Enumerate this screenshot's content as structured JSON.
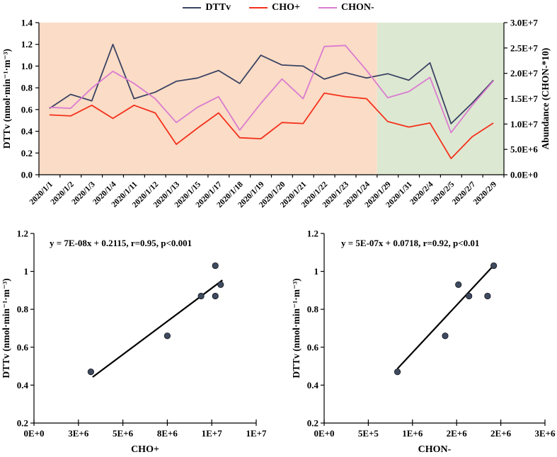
{
  "legend": {
    "items": [
      {
        "label": "DTTv",
        "color": "#3A4363"
      },
      {
        "label": "CHO+",
        "color": "#F4301B"
      },
      {
        "label": "CHON-",
        "color": "#DA7BD0"
      }
    ]
  },
  "colors": {
    "pre_period_background": "#FBDCC6",
    "post_period_background": "#DDE8D2",
    "axis": "#000000",
    "scatter_point_fill": "#3E4A5E",
    "scatter_point_stroke": "#15151F",
    "trend_line": "#000000"
  },
  "chart_data": [
    {
      "id": "timeseries",
      "type": "line",
      "legend_position": "top-center",
      "categories": [
        "2020/1/1",
        "2020/1/2",
        "2020/1/3",
        "2020/1/4",
        "2020/1/11",
        "2020/1/12",
        "2020/1/13",
        "2020/1/15",
        "2020/1/17",
        "2020/1/18",
        "2020/1/19",
        "2020/1/20",
        "2020/1/21",
        "2020/1/22",
        "2020/1/23",
        "2020/1/24",
        "2020/1/29",
        "2020/1/31",
        "2020/2/4",
        "2020/2/5",
        "2020/2/7",
        "2020/2/9"
      ],
      "series": [
        {
          "name": "DTTv",
          "axis": "left",
          "color": "#3A4363",
          "values": [
            0.61,
            0.74,
            0.68,
            1.2,
            0.7,
            0.76,
            0.86,
            0.89,
            0.96,
            0.84,
            1.1,
            1.01,
            1.0,
            0.88,
            0.94,
            0.89,
            0.93,
            0.87,
            1.03,
            0.47,
            0.66,
            0.87
          ]
        },
        {
          "name": "CHO+",
          "axis": "right",
          "color": "#F4301B",
          "values": [
            11800000.0,
            11600000.0,
            13700000.0,
            11100000.0,
            13700000.0,
            12200000.0,
            6000000.0,
            9200000.0,
            12200000.0,
            7300000.0,
            7100000.0,
            10300000.0,
            10100000.0,
            16100000.0,
            15400000.0,
            15000000.0,
            10500000.0,
            9400000.0,
            10200000.0,
            3200000.0,
            7500000.0,
            10200000.0
          ]
        },
        {
          "name": "CHON-",
          "axis": "right",
          "color": "#DA7BD0",
          "values": [
            13300000.0,
            13100000.0,
            17100000.0,
            20400000.0,
            18000000.0,
            15000000.0,
            10300000.0,
            13300000.0,
            15400000.0,
            8800000.0,
            14100000.0,
            18900000.0,
            15000000.0,
            25300000.0,
            25500000.0,
            20600000.0,
            15200000.0,
            16400000.0,
            19200000.0,
            8300000.0,
            13700000.0,
            18500000.0
          ]
        }
      ],
      "left_axis": {
        "label": "DTTv (nmol·min⁻¹·m⁻³)",
        "min": 0,
        "max": 1.4,
        "tick_labels": [
          "0.0",
          "0.2",
          "0.4",
          "0.6",
          "0.8",
          "1.0",
          "1.2",
          "1.4"
        ]
      },
      "right_axis": {
        "label": "Abundance (CHON-*10)",
        "min": 0,
        "max": 30000000.0,
        "tick_labels": [
          "0.0E+0",
          "5.0E+6",
          "1.0E+7",
          "1.5E+7",
          "2.0E+7",
          "2.5E+7",
          "3.0E+7"
        ]
      },
      "regions": [
        {
          "name": "pre-period",
          "from_category": 0,
          "to_category": 16,
          "color": "#FBDCC6"
        },
        {
          "name": "post-period",
          "from_category": 16,
          "to_category": 22,
          "color": "#DDE8D2"
        }
      ],
      "grid": false
    },
    {
      "id": "scatter_cho",
      "type": "scatter",
      "annotation": "y = 7E-08x + 0.2115, r=0.95, p<0.001",
      "xlabel": "CHO+",
      "ylabel": "DTTv (nmol·min⁻¹·m⁻³)",
      "x": [
        3200000.0,
        7500000.0,
        9400000.0,
        10200000.0,
        10200000.0,
        10500000.0
      ],
      "y": [
        0.47,
        0.66,
        0.87,
        0.87,
        1.03,
        0.93
      ],
      "trend": {
        "slope": 7e-08,
        "intercept": 0.2115,
        "x_start": 3300000.0,
        "x_end": 10600000.0
      },
      "x_axis": {
        "min": 0,
        "max": 12500000.0,
        "tick_values": [
          0,
          2500000.0,
          5000000.0,
          7500000.0,
          10000000.0,
          12500000.0
        ],
        "tick_labels": [
          "0E+0",
          "3E+6",
          "5E+6",
          "8E+6",
          "1E+7",
          "1E+7"
        ]
      },
      "y_axis": {
        "min": 0.2,
        "max": 1.2,
        "tick_values": [
          0.2,
          0.4,
          0.6,
          0.8,
          1.0,
          1.2
        ],
        "tick_labels": [
          "0.2",
          "0.4",
          "0.6",
          "0.8",
          "1",
          "1.2"
        ]
      },
      "grid": false
    },
    {
      "id": "scatter_chon",
      "type": "scatter",
      "annotation": "y = 5E-07x + 0.0718, r=0.92, p<0.01",
      "xlabel": "CHON-",
      "ylabel": "DTTv (nmol·min⁻¹·m⁻³)",
      "x": [
        830000.0,
        1370000.0,
        1520000.0,
        1640000.0,
        1850000.0,
        1920000.0
      ],
      "y": [
        0.47,
        0.66,
        0.93,
        0.87,
        0.87,
        1.03
      ],
      "trend": {
        "slope": 5e-07,
        "intercept": 0.0718,
        "x_start": 830000.0,
        "x_end": 1930000.0
      },
      "x_axis": {
        "min": 0,
        "max": 2500000.0,
        "tick_values": [
          0,
          500000.0,
          1000000.0,
          1500000.0,
          2000000.0,
          2500000.0
        ],
        "tick_labels": [
          "0E+0",
          "5E+5",
          "1E+6",
          "2E+6",
          "2E+6",
          "3E+6"
        ]
      },
      "y_axis": {
        "min": 0.2,
        "max": 1.2,
        "tick_values": [
          0.2,
          0.4,
          0.6,
          0.8,
          1.0,
          1.2
        ],
        "tick_labels": [
          "0.2",
          "0.4",
          "0.6",
          "0.8",
          "1",
          "1.2"
        ]
      },
      "grid": false
    }
  ]
}
